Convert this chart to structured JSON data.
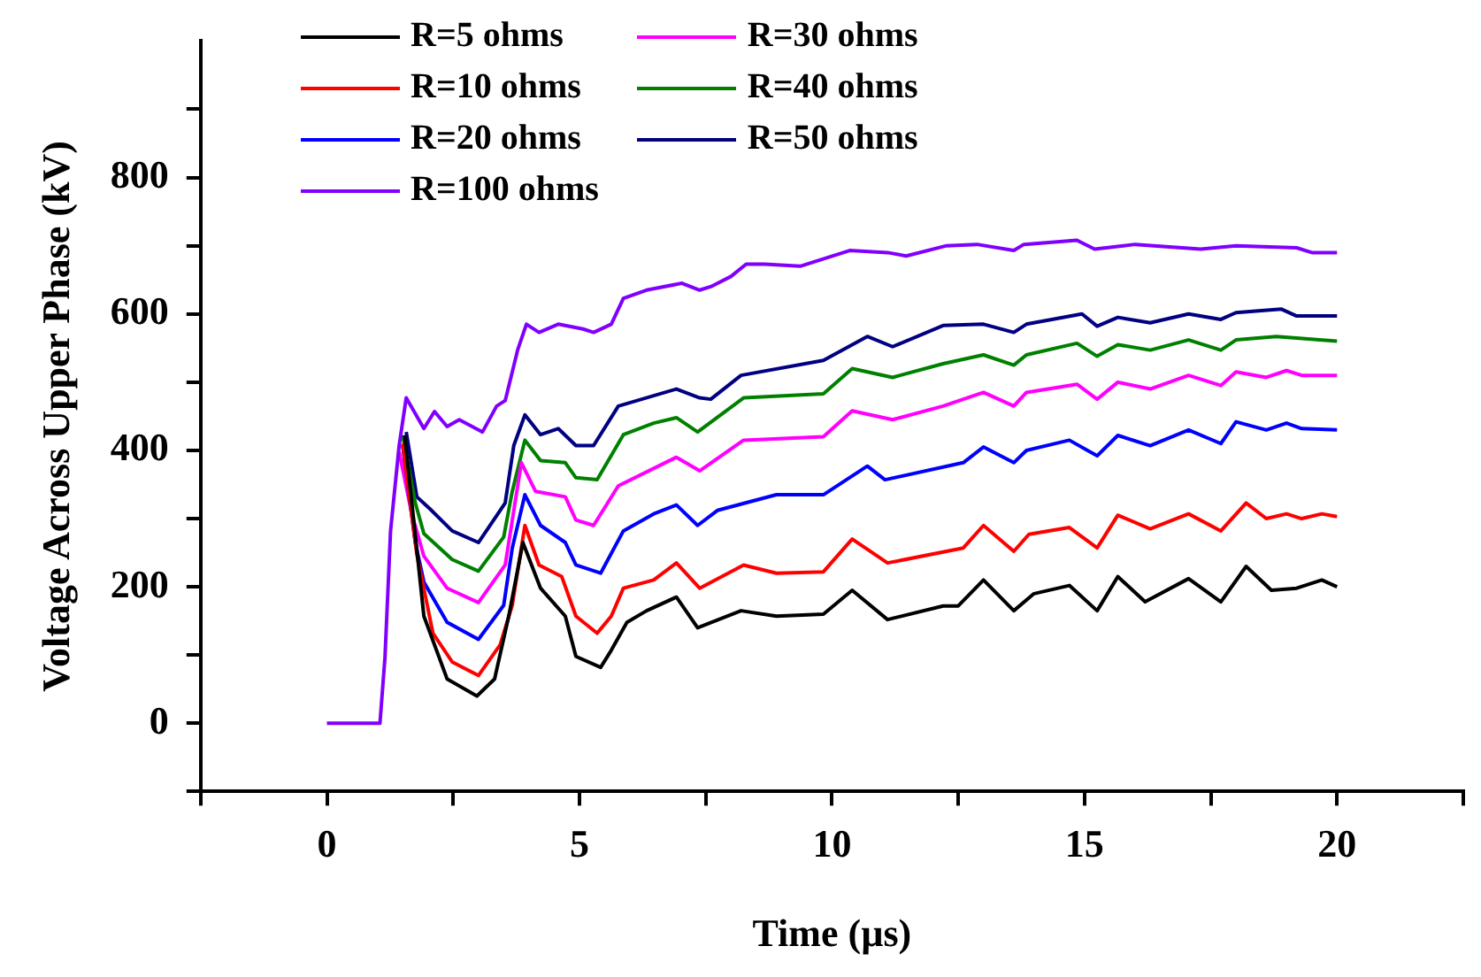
{
  "chart_data": {
    "type": "line",
    "xlabel": "Time (µs)",
    "ylabel": "Voltage Across Upper Phase (kV)",
    "xlim": [
      -2.5,
      22.5
    ],
    "xticks": [
      {
        "value": -2.5,
        "label": null
      },
      0,
      {
        "value": 2.5,
        "label": null
      },
      5,
      {
        "value": 7.5,
        "label": null
      },
      10,
      {
        "value": 12.5,
        "label": null
      },
      15,
      {
        "value": 17.5,
        "label": null
      },
      20,
      {
        "value": 22.5,
        "label": null
      }
    ],
    "ylim": [
      -100,
      1000
    ],
    "yticks": [
      {
        "value": -100,
        "label": null
      },
      0,
      {
        "value": 100,
        "label": null
      },
      200,
      {
        "value": 300,
        "label": null
      },
      400,
      {
        "value": 500,
        "label": null
      },
      600,
      {
        "value": 700,
        "label": null
      },
      800,
      {
        "value": 900,
        "label": null
      }
    ],
    "grid": false,
    "legend": "top",
    "marker": "none",
    "line_style": "solid",
    "series": [
      {
        "name": "R=5 ohms",
        "color": "#000000",
        "x": [
          1.54,
          1.92,
          2.38,
          2.97,
          3.32,
          3.6,
          3.88,
          4.23,
          4.72,
          4.93,
          5.42,
          5.63,
          5.94,
          6.33,
          6.92,
          7.34,
          8.2,
          8.9,
          9.83,
          10.4,
          11.1,
          12.2,
          12.5,
          13.0,
          13.6,
          14.0,
          14.7,
          15.25,
          15.66,
          16.2,
          17.06,
          17.7,
          18.2,
          18.7,
          19.2,
          19.7,
          20
        ],
        "values": [
          422,
          157,
          65,
          40,
          65,
          157,
          265,
          198,
          157,
          98,
          82,
          107,
          148,
          165,
          185,
          140,
          165,
          157,
          160,
          195,
          152,
          172,
          172,
          210,
          165,
          190,
          202,
          165,
          215,
          178,
          212,
          178,
          230,
          195,
          198,
          210,
          200
        ]
      },
      {
        "name": "R=10 ohms",
        "color": "#ff0000",
        "x": [
          1.5,
          1.78,
          2.1,
          2.48,
          3.0,
          3.43,
          3.67,
          3.92,
          4.2,
          4.65,
          4.93,
          5.35,
          5.63,
          5.87,
          6.47,
          6.92,
          7.38,
          8.25,
          8.9,
          9.83,
          10.4,
          11.1,
          12.6,
          13.0,
          13.6,
          13.9,
          14.7,
          15.25,
          15.66,
          16.3,
          17.06,
          17.7,
          18.2,
          18.6,
          19.0,
          19.3,
          19.7,
          20
        ],
        "values": [
          410,
          248,
          132,
          90,
          70,
          115,
          173,
          290,
          232,
          215,
          157,
          132,
          157,
          198,
          210,
          235,
          198,
          232,
          220,
          222,
          270,
          235,
          257,
          290,
          252,
          277,
          287,
          257,
          305,
          285,
          307,
          282,
          323,
          300,
          307,
          300,
          307,
          303
        ]
      },
      {
        "name": "R=20 ohms",
        "color": "#0000ff",
        "x": [
          1.5,
          1.75,
          1.92,
          2.38,
          3.0,
          3.5,
          3.67,
          3.92,
          4.23,
          4.72,
          4.93,
          5.42,
          5.87,
          6.47,
          6.92,
          7.34,
          7.73,
          8.9,
          9.83,
          10.7,
          11.05,
          12.6,
          13.0,
          13.6,
          13.85,
          14.7,
          15.25,
          15.66,
          16.3,
          17.06,
          17.7,
          18.0,
          18.6,
          19.0,
          19.3,
          20
        ],
        "values": [
          407,
          265,
          207,
          148,
          123,
          173,
          257,
          335,
          290,
          265,
          232,
          220,
          282,
          307,
          320,
          290,
          312,
          335,
          335,
          377,
          357,
          382,
          405,
          382,
          400,
          415,
          392,
          422,
          407,
          430,
          410,
          442,
          430,
          440,
          432,
          430
        ]
      },
      {
        "name": "R=100 ohms",
        "color": "#8000ff",
        "x": [
          0,
          1.05,
          1.15,
          1.26,
          1.43,
          1.57,
          1.92,
          2.13,
          2.38,
          2.62,
          3.0,
          3.08,
          3.36,
          3.53,
          3.78,
          3.95,
          4.2,
          4.58,
          5.07,
          5.28,
          5.63,
          5.87,
          6.33,
          7.03,
          7.38,
          7.6,
          8.0,
          8.3,
          8.67,
          9.37,
          10.35,
          11.1,
          11.47,
          12.27,
          12.87,
          13.6,
          13.8,
          14.85,
          15.2,
          16.0,
          17.3,
          18.0,
          19.2,
          19.5,
          20
        ],
        "values": [
          0,
          0,
          97,
          282,
          407,
          477,
          432,
          457,
          435,
          445,
          430,
          427,
          465,
          473,
          548,
          585,
          573,
          585,
          578,
          573,
          585,
          623,
          635,
          645,
          635,
          640,
          655,
          673,
          673,
          670,
          693,
          690,
          685,
          700,
          702,
          693,
          702,
          708,
          695,
          702,
          695,
          700,
          697,
          690,
          690
        ]
      },
      {
        "name": "R=30 ohms",
        "color": "#ff00ff",
        "x": [
          1.43,
          1.68,
          1.92,
          2.38,
          3.0,
          3.53,
          3.85,
          4.13,
          4.72,
          4.93,
          5.28,
          5.77,
          6.92,
          7.38,
          8.25,
          9.83,
          10.4,
          11.2,
          12.2,
          13.0,
          13.6,
          13.85,
          14.85,
          15.25,
          15.66,
          16.3,
          17.06,
          17.7,
          18.0,
          18.6,
          19.0,
          19.3,
          20
        ],
        "values": [
          398,
          307,
          245,
          198,
          177,
          232,
          382,
          340,
          332,
          298,
          290,
          348,
          390,
          370,
          415,
          420,
          458,
          445,
          465,
          485,
          465,
          485,
          497,
          475,
          500,
          490,
          510,
          495,
          515,
          507,
          517,
          510,
          510
        ]
      },
      {
        "name": "R=40 ohms",
        "color": "#008000",
        "x": [
          1.5,
          1.75,
          1.92,
          2.48,
          3.0,
          3.5,
          3.67,
          3.92,
          4.23,
          4.72,
          4.93,
          5.35,
          5.87,
          6.47,
          6.92,
          7.34,
          8.25,
          9.83,
          10.4,
          11.2,
          12.2,
          13.0,
          13.6,
          13.85,
          14.85,
          15.25,
          15.66,
          16.3,
          17.06,
          17.7,
          18.0,
          18.8,
          20
        ],
        "values": [
          422,
          323,
          278,
          240,
          223,
          273,
          340,
          415,
          385,
          382,
          360,
          357,
          423,
          440,
          448,
          427,
          477,
          483,
          520,
          507,
          527,
          540,
          525,
          540,
          557,
          538,
          555,
          547,
          562,
          547,
          562,
          567,
          560
        ]
      },
      {
        "name": "R=50 ohms",
        "color": "#000080",
        "x": [
          1.57,
          1.78,
          2.03,
          2.48,
          3.0,
          3.53,
          3.7,
          3.92,
          4.23,
          4.58,
          4.93,
          5.28,
          5.77,
          6.92,
          7.38,
          7.6,
          8.2,
          9.83,
          10.7,
          11.2,
          12.2,
          13.0,
          13.6,
          13.85,
          14.95,
          15.25,
          15.66,
          16.3,
          17.06,
          17.7,
          18.0,
          18.9,
          19.2,
          20
        ],
        "values": [
          427,
          332,
          315,
          282,
          265,
          323,
          407,
          452,
          423,
          432,
          407,
          407,
          465,
          490,
          477,
          475,
          510,
          532,
          567,
          552,
          583,
          585,
          573,
          585,
          600,
          582,
          595,
          587,
          600,
          592,
          602,
          607,
          597,
          597
        ]
      }
    ]
  }
}
